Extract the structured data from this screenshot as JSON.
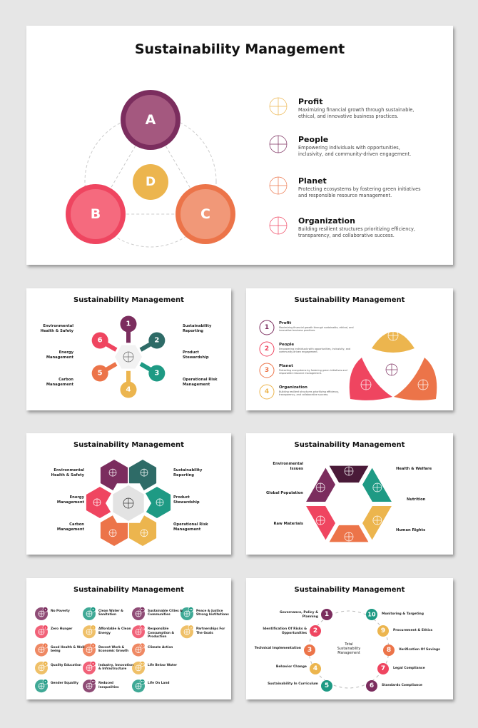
{
  "colors": {
    "purple": "#7b2d5e",
    "pink": "#ef4560",
    "orange": "#ec7449",
    "yellow": "#ecb54e",
    "dark_teal": "#2e6b67",
    "teal": "#1e9a84",
    "dark_purple": "#4a1a38"
  },
  "slide1": {
    "title": "Sustainability Management",
    "circles": [
      "A",
      "B",
      "C",
      "D"
    ],
    "items": [
      {
        "title": "Profit",
        "desc": "Maximizing financial growth through sustainable, ethical, and innovative business practices.",
        "icon": "target-chart-icon"
      },
      {
        "title": "People",
        "desc": "Empowering individuals with opportunities, inclusivity, and community-driven engagement.",
        "icon": "person-target-icon"
      },
      {
        "title": "Planet",
        "desc": "Protecting ecosystems by fostering green initiatives and responsible resource management.",
        "icon": "globe-pin-icon"
      },
      {
        "title": "Organization",
        "desc": "Building resilient structures prioritizing efficiency, transparency, and collaborative success.",
        "icon": "team-network-icon"
      }
    ]
  },
  "slide2": {
    "title": "Sustainability Management",
    "numbers": [
      "1",
      "2",
      "3",
      "4",
      "5",
      "6"
    ],
    "left": [
      "Environmental Health & Safety",
      "Energy Management",
      "Carbon Management"
    ],
    "right": [
      "Sustainability Reporting",
      "Product Stewardship",
      "Operational Risk Management"
    ],
    "center_icon": "gear-leaf-icon"
  },
  "slide3": {
    "title": "Sustainability Management",
    "items": [
      {
        "num": "1",
        "title": "Profit",
        "desc": "Maximizing financial growth through sustainable, ethical, and innovative business practices."
      },
      {
        "num": "2",
        "title": "People",
        "desc": "Empowering individuals with opportunities, inclusivity, and community-driven engagement."
      },
      {
        "num": "3",
        "title": "Planet",
        "desc": "Protecting ecosystems by fostering green initiatives and responsible resource management."
      },
      {
        "num": "4",
        "title": "Organization",
        "desc": "Building resilient structures prioritizing efficiency, transparency, and collaborative success."
      }
    ]
  },
  "slide4": {
    "title": "Sustainability Management",
    "left": [
      "Environmental Health & Safety",
      "Energy Management",
      "Carbon Management"
    ],
    "right": [
      "Sustainability Reporting",
      "Product Stewardship",
      "Operational Risk Management"
    ],
    "center_icon": "recycle-globe-icon"
  },
  "slide5": {
    "title": "Sustainability Management",
    "left": [
      "Environmental Issues",
      "Global Population",
      "Raw Materials"
    ],
    "right": [
      "Health & Welfare",
      "Nutrition",
      "Human Rights"
    ]
  },
  "slide6": {
    "title": "Sustainability Management",
    "goals": [
      "No Poverty",
      "Zero Hunger",
      "Good Health & Well-being",
      "Quality Education",
      "Gender Equality",
      "Clean Water & Sanitation",
      "Affordable & Clean Energy",
      "Decent Work & Economic Growth",
      "Industry, Innovation & Infrastructure",
      "Reduced Inequalities",
      "Sustainable Cities & Communities",
      "Responsible Consumption & Production",
      "Climate Action",
      "Life Below Water",
      "Life On Land",
      "Peace & Justice Strong Institutions",
      "Partnerships For The Goals"
    ]
  },
  "slide7": {
    "title": "Sustainability Management",
    "center": "Total Sustainability Management",
    "steps": [
      "Governance, Policy & Planning",
      "Identification Of Risks & Opportunities",
      "Technical Implementation",
      "Behavior Change",
      "Sustainability In Curriculum",
      "Standards Compliance",
      "Legal Compliance",
      "Verification Of Savings",
      "Procurement & Ethics",
      "Monitoring & Targeting"
    ]
  }
}
